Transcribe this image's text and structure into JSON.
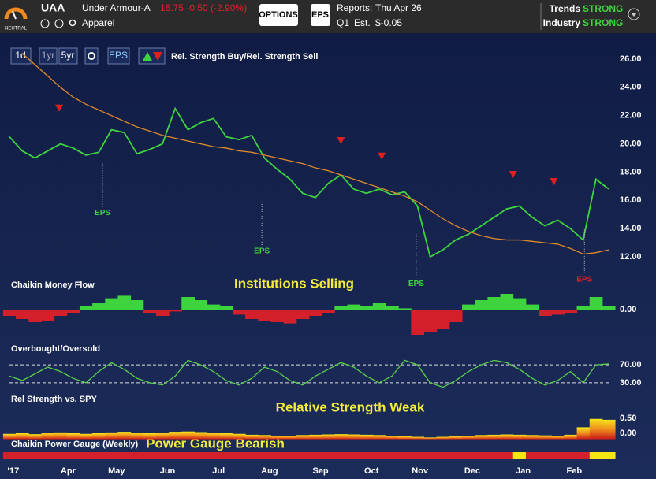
{
  "header": {
    "rating": "NEUTRAL",
    "ticker": "UAA",
    "company": "Under Armour-A",
    "quote": "16.75 -0.50 (-2.90%)",
    "industry": "Apparel",
    "options": "OPTIONS",
    "eps_button": "EPS",
    "reports_label": "Reports:",
    "reports_date": "Thu Apr 26",
    "quarter": "Q1",
    "est_label": "Est.",
    "est_value": "$-0.05",
    "trends_label": "Trends",
    "trends_value": "STRONG",
    "industry_label": "Industry",
    "industry_value": "STRONG"
  },
  "toolbar": {
    "day": "1d",
    "year": "1yr",
    "five_year": "5yr",
    "eps": "EPS",
    "signal_label": "Rel. Strength Buy/Rel. Strength Sell"
  },
  "chart_data": [
    {
      "type": "line",
      "xlim": [
        0,
        47
      ],
      "ylim": [
        11,
        27
      ],
      "yticks": [
        {
          "value": 12,
          "label": "12.00"
        },
        {
          "value": 14,
          "label": "14.00"
        },
        {
          "value": 16,
          "label": "16.00"
        },
        {
          "value": 18,
          "label": "18.00"
        },
        {
          "value": 20,
          "label": "20.00"
        },
        {
          "value": 22,
          "label": "22.00"
        },
        {
          "value": 24,
          "label": "24.00"
        },
        {
          "value": 26,
          "label": "26.00"
        }
      ],
      "series": [
        {
          "color": "#3ed43e",
          "values": [
            20.5,
            19.5,
            19.0,
            19.5,
            20.0,
            19.7,
            19.2,
            19.4,
            21.0,
            20.8,
            19.3,
            19.6,
            20.0,
            22.5,
            21.0,
            21.5,
            21.8,
            20.5,
            20.3,
            20.6,
            19.0,
            18.2,
            17.5,
            16.5,
            16.2,
            17.2,
            17.8,
            16.8,
            16.5,
            16.8,
            16.4,
            16.6,
            15.6,
            12.0,
            12.5,
            13.2,
            13.6,
            14.2,
            14.8,
            15.4,
            15.6,
            14.8,
            14.2,
            14.6,
            14.0,
            13.2,
            17.5,
            16.8
          ]
        },
        {
          "color": "#e08a2a",
          "values": [
            null,
            26.4,
            25.6,
            24.8,
            24.0,
            23.3,
            22.8,
            22.4,
            22.0,
            21.6,
            21.2,
            20.9,
            20.6,
            20.4,
            20.2,
            20.0,
            19.8,
            19.7,
            19.5,
            19.4,
            19.2,
            19.0,
            18.8,
            18.6,
            18.3,
            18.1,
            17.8,
            17.5,
            17.2,
            16.9,
            16.6,
            16.3,
            15.9,
            15.3,
            14.7,
            14.2,
            13.8,
            13.5,
            13.3,
            13.2,
            13.2,
            13.1,
            13.0,
            12.9,
            12.6,
            12.2,
            12.3,
            12.5
          ]
        }
      ],
      "markers": {
        "color": "#e02020",
        "x": [
          3.9,
          26.0,
          29.2,
          39.5,
          42.7
        ],
        "values": [
          22.5,
          20.2,
          19.1,
          17.8,
          17.3
        ]
      },
      "annotations": [
        {
          "text": "EPS",
          "x": 7.3,
          "y": 15.1,
          "color": "#3ed43e"
        },
        {
          "text": "EPS",
          "x": 19.8,
          "y": 12.4,
          "color": "#3ed43e"
        },
        {
          "text": "EPS",
          "x": 31.9,
          "y": 10.1,
          "color": "#3ed43e"
        },
        {
          "text": "EPS",
          "x": 45.1,
          "y": 10.4,
          "color": "#e02020"
        }
      ]
    },
    {
      "type": "bar",
      "title": "Chaikin Money Flow",
      "annotation": "Institutions Selling",
      "xlim": [
        0,
        47
      ],
      "ylim": [
        -0.5,
        0.3
      ],
      "yticks": [
        {
          "value": 0,
          "label": "0.00"
        }
      ],
      "colors": {
        "positive": "#3ed43e",
        "negative": "#d4202a"
      },
      "values": [
        -0.1,
        -0.15,
        -0.2,
        -0.18,
        -0.1,
        -0.05,
        0.05,
        0.1,
        0.18,
        0.22,
        0.15,
        -0.05,
        -0.1,
        -0.03,
        0.2,
        0.15,
        0.08,
        0.05,
        -0.08,
        -0.15,
        -0.18,
        -0.2,
        -0.22,
        -0.15,
        -0.1,
        -0.05,
        0.05,
        0.08,
        0.05,
        0.1,
        0.06,
        0.02,
        -0.4,
        -0.35,
        -0.3,
        -0.2,
        0.08,
        0.15,
        0.2,
        0.25,
        0.18,
        0.08,
        -0.1,
        -0.08,
        -0.05,
        0.05,
        0.2,
        0.05
      ]
    },
    {
      "type": "line",
      "title": "Overbought/Oversold",
      "xlim": [
        0,
        47
      ],
      "ylim": [
        0,
        100
      ],
      "yticks": [
        {
          "value": 30,
          "label": "30.00"
        },
        {
          "value": 70,
          "label": "70.00"
        }
      ],
      "grid": true,
      "series": [
        {
          "color": "#5bd04a",
          "values": [
            45,
            35,
            50,
            65,
            55,
            40,
            30,
            55,
            75,
            60,
            40,
            30,
            25,
            45,
            80,
            70,
            55,
            35,
            25,
            40,
            65,
            55,
            35,
            25,
            45,
            60,
            75,
            65,
            45,
            30,
            45,
            80,
            70,
            30,
            20,
            35,
            55,
            70,
            80,
            75,
            60,
            40,
            25,
            35,
            55,
            30,
            70,
            72
          ]
        }
      ]
    },
    {
      "type": "area",
      "title": "Rel Strength vs. SPY",
      "annotation": "Relative Strength Weak",
      "xlim": [
        0,
        47
      ],
      "ylim": [
        -0.2,
        0.7
      ],
      "yticks": [
        {
          "value": 0,
          "label": "0.00"
        },
        {
          "value": 0.5,
          "label": "0.50"
        }
      ],
      "values": [
        -0.02,
        0.0,
        -0.03,
        0.02,
        0.03,
        0.0,
        -0.02,
        0.0,
        0.03,
        0.05,
        0.02,
        0.0,
        0.02,
        0.05,
        0.06,
        0.04,
        0.02,
        0.0,
        -0.02,
        -0.05,
        -0.06,
        -0.08,
        -0.08,
        -0.06,
        -0.05,
        -0.04,
        -0.03,
        -0.04,
        -0.05,
        -0.06,
        -0.08,
        -0.1,
        -0.12,
        -0.14,
        -0.12,
        -0.1,
        -0.08,
        -0.06,
        -0.05,
        -0.04,
        -0.05,
        -0.06,
        -0.07,
        -0.08,
        -0.05,
        0.2,
        0.48,
        0.45
      ]
    },
    {
      "type": "strip",
      "title": "Chaikin Power Gauge (Weekly)",
      "annotation": "Power Gauge Bearish",
      "xlim": [
        0,
        47
      ],
      "colors": [
        "#d4202a",
        "#d4202a",
        "#d4202a",
        "#d4202a",
        "#d4202a",
        "#d4202a",
        "#d4202a",
        "#d4202a",
        "#d4202a",
        "#d4202a",
        "#d4202a",
        "#d4202a",
        "#d4202a",
        "#d4202a",
        "#d4202a",
        "#d4202a",
        "#d4202a",
        "#d4202a",
        "#d4202a",
        "#d4202a",
        "#d4202a",
        "#d4202a",
        "#d4202a",
        "#d4202a",
        "#d4202a",
        "#d4202a",
        "#d4202a",
        "#d4202a",
        "#d4202a",
        "#d4202a",
        "#d4202a",
        "#d4202a",
        "#d4202a",
        "#d4202a",
        "#d4202a",
        "#d4202a",
        "#d4202a",
        "#d4202a",
        "#d4202a",
        "#d4202a",
        "#f5e614",
        "#d4202a",
        "#d4202a",
        "#d4202a",
        "#d4202a",
        "#d4202a",
        "#f5e614",
        "#f5e614"
      ],
      "xticks": [
        {
          "value": 0.3,
          "label": "'17"
        },
        {
          "value": 4.6,
          "label": "Apr"
        },
        {
          "value": 8.4,
          "label": "May"
        },
        {
          "value": 12.4,
          "label": "Jun"
        },
        {
          "value": 16.4,
          "label": "Jul"
        },
        {
          "value": 20.4,
          "label": "Aug"
        },
        {
          "value": 24.4,
          "label": "Sep"
        },
        {
          "value": 28.4,
          "label": "Oct"
        },
        {
          "value": 32.2,
          "label": "Nov"
        },
        {
          "value": 36.3,
          "label": "Dec"
        },
        {
          "value": 40.3,
          "label": "Jan"
        },
        {
          "value": 44.3,
          "label": "Feb"
        }
      ]
    }
  ]
}
